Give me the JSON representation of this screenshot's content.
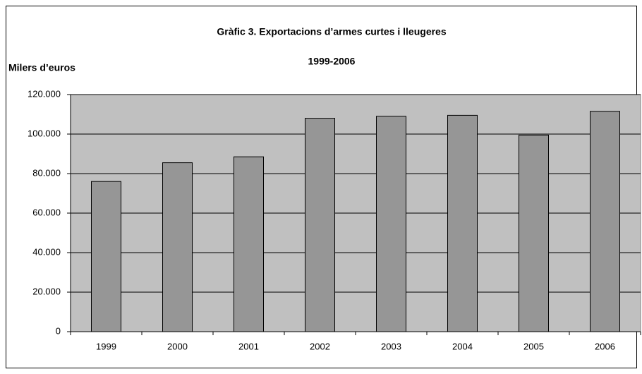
{
  "chart_data": {
    "type": "bar",
    "title": "Gràfic 3. Exportacions d’armes curtes i lleugeres",
    "subtitle": "1999-2006",
    "y_label": "Milers d’euros",
    "categories": [
      "1999",
      "2000",
      "2001",
      "2002",
      "2003",
      "2004",
      "2005",
      "2006"
    ],
    "values": [
      76000,
      85500,
      88500,
      108000,
      109000,
      109500,
      99500,
      111500
    ],
    "color": "#969696",
    "ylim": [
      0,
      120000
    ],
    "yticks": [
      0,
      {
        "value": 20000,
        "label": "20.000"
      },
      {
        "value": 40000,
        "label": "40.000"
      },
      {
        "value": 60000,
        "label": "60.000"
      },
      {
        "value": 80000,
        "label": "80.000"
      },
      {
        "value": 100000,
        "label": "100.000"
      },
      {
        "value": 120000,
        "label": "120.000"
      }
    ],
    "grid": true
  }
}
